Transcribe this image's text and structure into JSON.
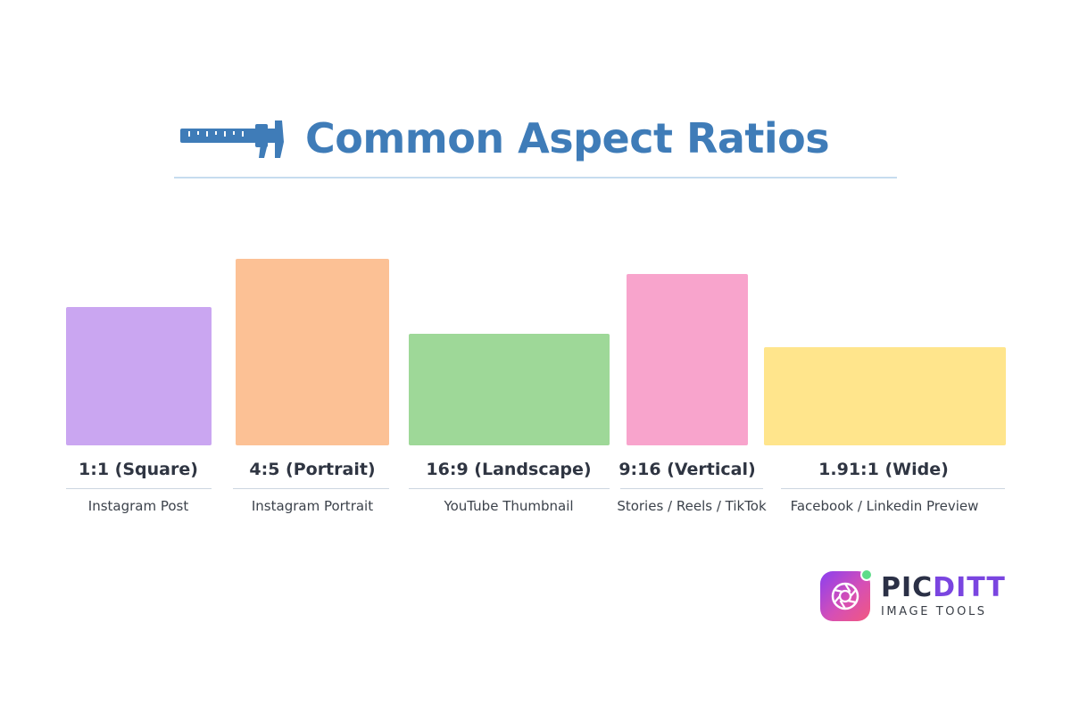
{
  "header": {
    "icon": "caliper-ruler-icon",
    "title": "Common Aspect Ratios"
  },
  "colors": {
    "title": "#3f7cb8",
    "square": "#caa6f1",
    "portrait": "#fcc195",
    "landscape": "#9ed898",
    "vertical": "#f8a4cc",
    "wide": "#ffe58c"
  },
  "ratios": [
    {
      "ratio": "1:1 (Square)",
      "use": "Instagram Post"
    },
    {
      "ratio": "4:5 (Portrait)",
      "use": "Instagram Portrait"
    },
    {
      "ratio": "16:9 (Landscape)",
      "use": "YouTube Thumbnail"
    },
    {
      "ratio": "9:16 (Vertical)",
      "use": "Stories / Reels / TikTok"
    },
    {
      "ratio": "1.91:1 (Wide)",
      "use": "Facebook / Linkedin Preview"
    }
  ],
  "logo": {
    "icon": "camera-aperture-icon",
    "name_part1": "PIC",
    "name_part2": "DITT",
    "subtitle": "IMAGE TOOLS"
  }
}
